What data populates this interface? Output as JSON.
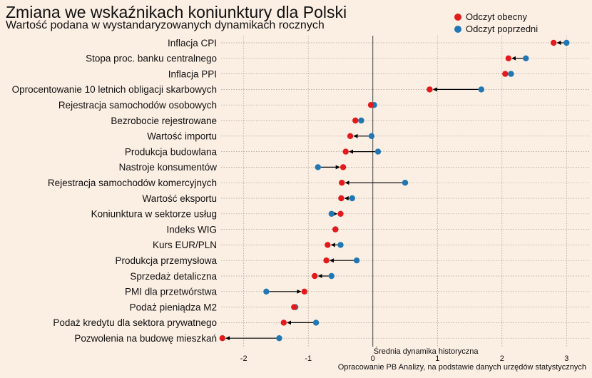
{
  "title": "Zmiana we wskaźnikach koniunktury dla Polski",
  "subtitle": "Wartość podana w wystandaryzowanych dynamikach rocznych",
  "caption": "Opracowanie  PB Analizy, na podstawie danych urzędów statystycznych",
  "colors": {
    "current": "#e31a1c",
    "previous": "#1f78b4",
    "background": "#fbeee3"
  },
  "chart_data": {
    "type": "dumbbell",
    "title": "Zmiana we wskaźnikach koniunktury dla Polski",
    "subtitle": "Wartość podana w wystandaryzowanych dynamikach rocznych",
    "xlim": [
      -2.35,
      3.35
    ],
    "xticks": [
      -2,
      -1,
      0,
      1,
      2,
      3
    ],
    "grid": true,
    "legend_position": "top-right",
    "reference_line": {
      "x": 0,
      "label": "Średnia dynamika historyczna"
    },
    "series": [
      {
        "name": "Odczyt obecny",
        "key": "current"
      },
      {
        "name": "Odczyt poprzedni",
        "key": "previous"
      }
    ],
    "categories": [
      "Inflacja CPI",
      "Stopa proc. banku centralnego",
      "Inflacja PPI",
      "Oprocentowanie 10 letnich obligacji skarbowych",
      "Rejestracja samochodów osobowych",
      "Bezrobocie rejestrowane",
      "Wartość importu",
      "Produkcja budowlana",
      "Nastroje konsumentów",
      "Rejestracja samochodów komercyjnych",
      "Wartość eksportu",
      "Koniunktura w sektorze usług",
      "Indeks WIG",
      "Kurs EUR/PLN",
      "Produkcja przemysłowa",
      "Sprzedaż detaliczna",
      "PMI dla przetwórstwa",
      "Podaż pieniądza M2",
      "Podaż kredytu dla sektora prywatnego",
      "Pozwolenia na budowę mieszkań"
    ],
    "current": [
      2.8,
      2.1,
      2.05,
      0.88,
      -0.03,
      -0.27,
      -0.35,
      -0.42,
      -0.46,
      -0.48,
      -0.49,
      -0.5,
      -0.58,
      -0.7,
      -0.72,
      -0.9,
      -1.06,
      -1.22,
      -1.38,
      -2.33
    ],
    "previous": [
      3.0,
      2.37,
      2.14,
      1.68,
      0.02,
      -0.18,
      -0.02,
      0.08,
      -0.85,
      0.5,
      -0.32,
      -0.64,
      -0.58,
      -0.5,
      -0.25,
      -0.64,
      -1.65,
      -1.2,
      -0.88,
      -1.45
    ]
  }
}
